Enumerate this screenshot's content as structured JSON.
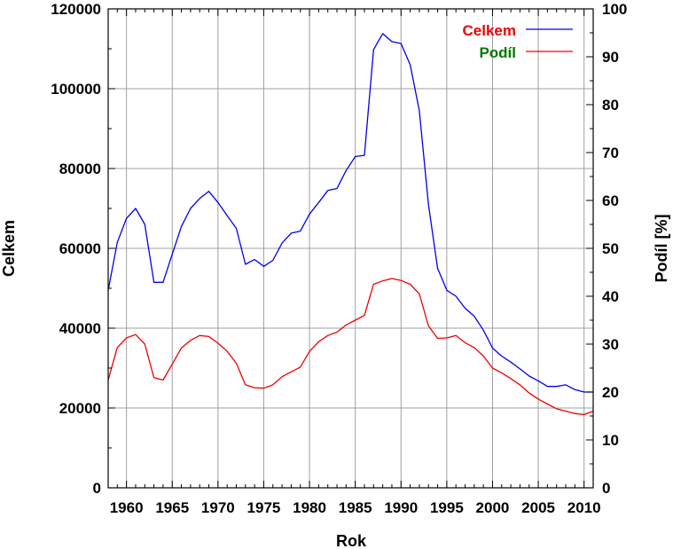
{
  "chart_data": {
    "type": "line",
    "xlabel": "Rok",
    "ylabel": "Celkem",
    "y2label": "Podíl [%]",
    "xlim": [
      1958,
      2011
    ],
    "ylim": [
      0,
      120000
    ],
    "y2lim": [
      0,
      100
    ],
    "xticks": [
      1960,
      1965,
      1970,
      1975,
      1980,
      1985,
      1990,
      1995,
      2000,
      2005,
      2010
    ],
    "yticks": [
      0,
      20000,
      40000,
      60000,
      80000,
      100000,
      120000
    ],
    "y2ticks": [
      0,
      10,
      20,
      30,
      40,
      50,
      60,
      70,
      80,
      90,
      100
    ],
    "grid": true,
    "legend_position": "top-right",
    "legend": [
      {
        "label": "Celkem",
        "label_color": "#ee0000",
        "line_color": "#0000ee"
      },
      {
        "label": "Podíl",
        "label_color": "#007700",
        "line_color": "#ee0000"
      }
    ],
    "series": [
      {
        "name": "Celkem",
        "axis": "left",
        "color": "#0000ee",
        "x": [
          1958,
          1959,
          1960,
          1961,
          1962,
          1963,
          1964,
          1965,
          1966,
          1967,
          1968,
          1969,
          1970,
          1971,
          1972,
          1973,
          1974,
          1975,
          1976,
          1977,
          1978,
          1979,
          1980,
          1981,
          1982,
          1983,
          1984,
          1985,
          1986,
          1987,
          1988,
          1989,
          1990,
          1991,
          1992,
          1993,
          1994,
          1995,
          1996,
          1997,
          1998,
          1999,
          2000,
          2001,
          2002,
          2003,
          2004,
          2005,
          2006,
          2007,
          2008,
          2009,
          2010,
          2011
        ],
        "y": [
          49500,
          61500,
          67500,
          70000,
          66000,
          51500,
          51500,
          58500,
          65500,
          70000,
          72500,
          74300,
          71500,
          68200,
          65000,
          56000,
          57200,
          55500,
          57000,
          61300,
          63800,
          64300,
          68600,
          71500,
          74500,
          75000,
          79500,
          83000,
          83300,
          109800,
          113800,
          111800,
          111300,
          106000,
          94500,
          71000,
          55000,
          49500,
          48000,
          45000,
          43000,
          39500,
          35000,
          33000,
          31500,
          29800,
          28000,
          26800,
          25400,
          25400,
          25800,
          24600,
          24000,
          24000
        ]
      },
      {
        "name": "Podíl",
        "axis": "right",
        "color": "#ee0000",
        "x": [
          1958,
          1959,
          1960,
          1961,
          1962,
          1963,
          1964,
          1965,
          1966,
          1967,
          1968,
          1969,
          1970,
          1971,
          1972,
          1973,
          1974,
          1975,
          1976,
          1977,
          1978,
          1979,
          1980,
          1981,
          1982,
          1983,
          1984,
          1985,
          1986,
          1987,
          1988,
          1989,
          1990,
          1991,
          1992,
          1993,
          1994,
          1995,
          1996,
          1997,
          1998,
          1999,
          2000,
          2001,
          2002,
          2003,
          2004,
          2005,
          2006,
          2007,
          2008,
          2009,
          2010,
          2011
        ],
        "y": [
          22.5,
          29.3,
          31.3,
          32.0,
          30.0,
          23.0,
          22.5,
          25.8,
          29.2,
          30.8,
          31.8,
          31.6,
          30.2,
          28.5,
          26.0,
          21.5,
          20.9,
          20.8,
          21.5,
          23.2,
          24.2,
          25.2,
          28.5,
          30.5,
          31.8,
          32.5,
          34.0,
          35.0,
          36.0,
          42.5,
          43.2,
          43.7,
          43.3,
          42.5,
          40.5,
          33.8,
          31.2,
          31.3,
          31.8,
          30.3,
          29.3,
          27.5,
          25.0,
          24.0,
          22.8,
          21.5,
          19.8,
          18.5,
          17.5,
          16.5,
          16.0,
          15.5,
          15.3,
          16.0
        ]
      }
    ]
  }
}
